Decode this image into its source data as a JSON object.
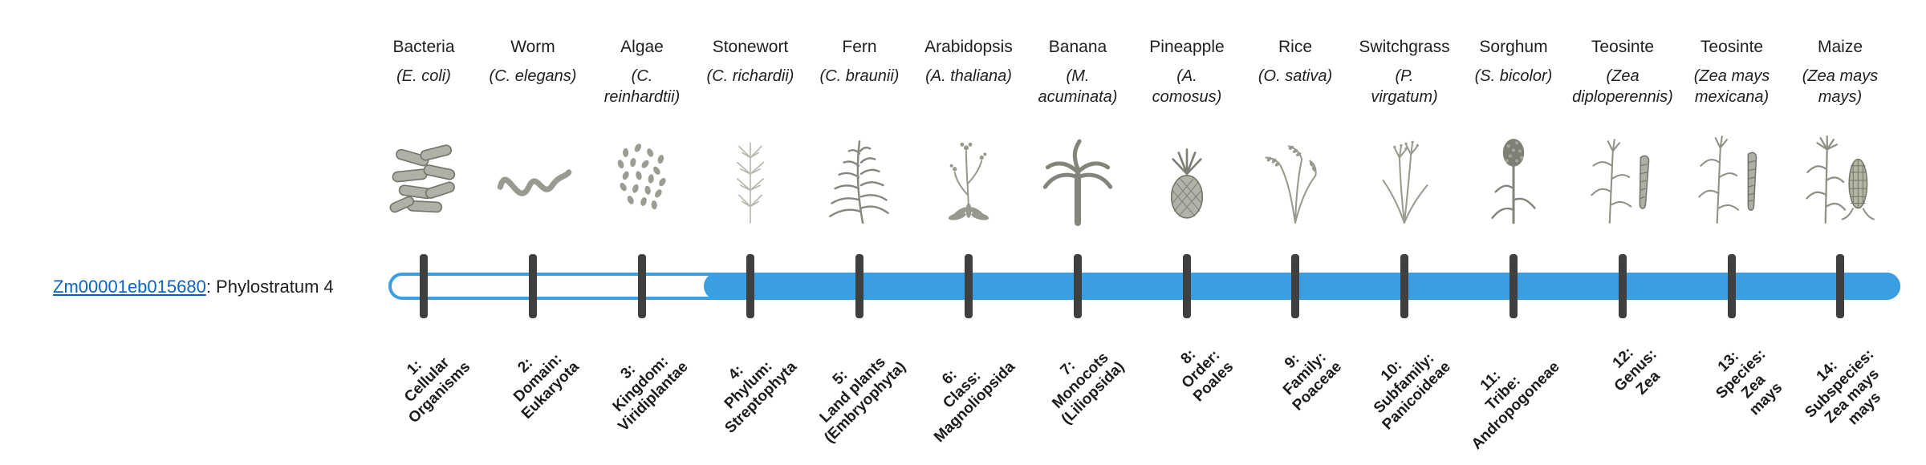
{
  "gene": {
    "id": "Zm00001eb015680",
    "suffix": ": Phylostratum 4",
    "phylostratum": 4
  },
  "timeline": {
    "bar_color": "#3A9FE1",
    "tick_color": "#3F3F3F",
    "link_color": "#0B63C5",
    "filled_from_stratum": 4,
    "total_strata": 14
  },
  "phylostrata": [
    {
      "index": 1,
      "organism": "Bacteria",
      "sci": "(E. coli)",
      "icon": "bacteria-icon",
      "stratum_label": "1:\nCellular\nOrganisms"
    },
    {
      "index": 2,
      "organism": "Worm",
      "sci": "(C. elegans)",
      "icon": "worm-icon",
      "stratum_label": "2:\nDomain:\nEukaryota"
    },
    {
      "index": 3,
      "organism": "Algae",
      "sci": "(C.\nreinhardtii)",
      "icon": "algae-icon",
      "stratum_label": "3:\nKingdom:\nViridiplantae"
    },
    {
      "index": 4,
      "organism": "Stonewort",
      "sci": "(C. richardii)",
      "icon": "stonewort-icon",
      "stratum_label": "4:\nPhylum:\nStreptophyta"
    },
    {
      "index": 5,
      "organism": "Fern",
      "sci": "(C. braunii)",
      "icon": "fern-icon",
      "stratum_label": "5:\nLand plants\n(Embryophyta)"
    },
    {
      "index": 6,
      "organism": "Arabidopsis",
      "sci": "(A. thaliana)",
      "icon": "arabidopsis-icon",
      "stratum_label": "6:\nClass:\nMagnoliopsida"
    },
    {
      "index": 7,
      "organism": "Banana",
      "sci": "(M.\nacuminata)",
      "icon": "banana-icon",
      "stratum_label": "7:\nMonocots\n(Liliopsida)"
    },
    {
      "index": 8,
      "organism": "Pineapple",
      "sci": "(A.\ncomosus)",
      "icon": "pineapple-icon",
      "stratum_label": "8:\nOrder:\nPoales"
    },
    {
      "index": 9,
      "organism": "Rice",
      "sci": "(O. sativa)",
      "icon": "rice-icon",
      "stratum_label": "9:\nFamily:\nPoaceae"
    },
    {
      "index": 10,
      "organism": "Switchgrass",
      "sci": "(P.\nvirgatum)",
      "icon": "switchgrass-icon",
      "stratum_label": "10:\nSubfamily:\nPanicoideae"
    },
    {
      "index": 11,
      "organism": "Sorghum",
      "sci": "(S. bicolor)",
      "icon": "sorghum-icon",
      "stratum_label": "11:\nTribe:\nAndropogoneae"
    },
    {
      "index": 12,
      "organism": "Teosinte",
      "sci": "(Zea\ndiploperennis)",
      "icon": "teosinte-diploperennis-icon",
      "stratum_label": "12:\nGenus:\nZea"
    },
    {
      "index": 13,
      "organism": "Teosinte",
      "sci": "(Zea mays\nmexicana)",
      "icon": "teosinte-mexicana-icon",
      "stratum_label": "13:\nSpecies:\nZea\nmays"
    },
    {
      "index": 14,
      "organism": "Maize",
      "sci": "(Zea mays\nmays)",
      "icon": "maize-icon",
      "stratum_label": "14:\nSubspecies:\nZea mays\nmays"
    }
  ]
}
